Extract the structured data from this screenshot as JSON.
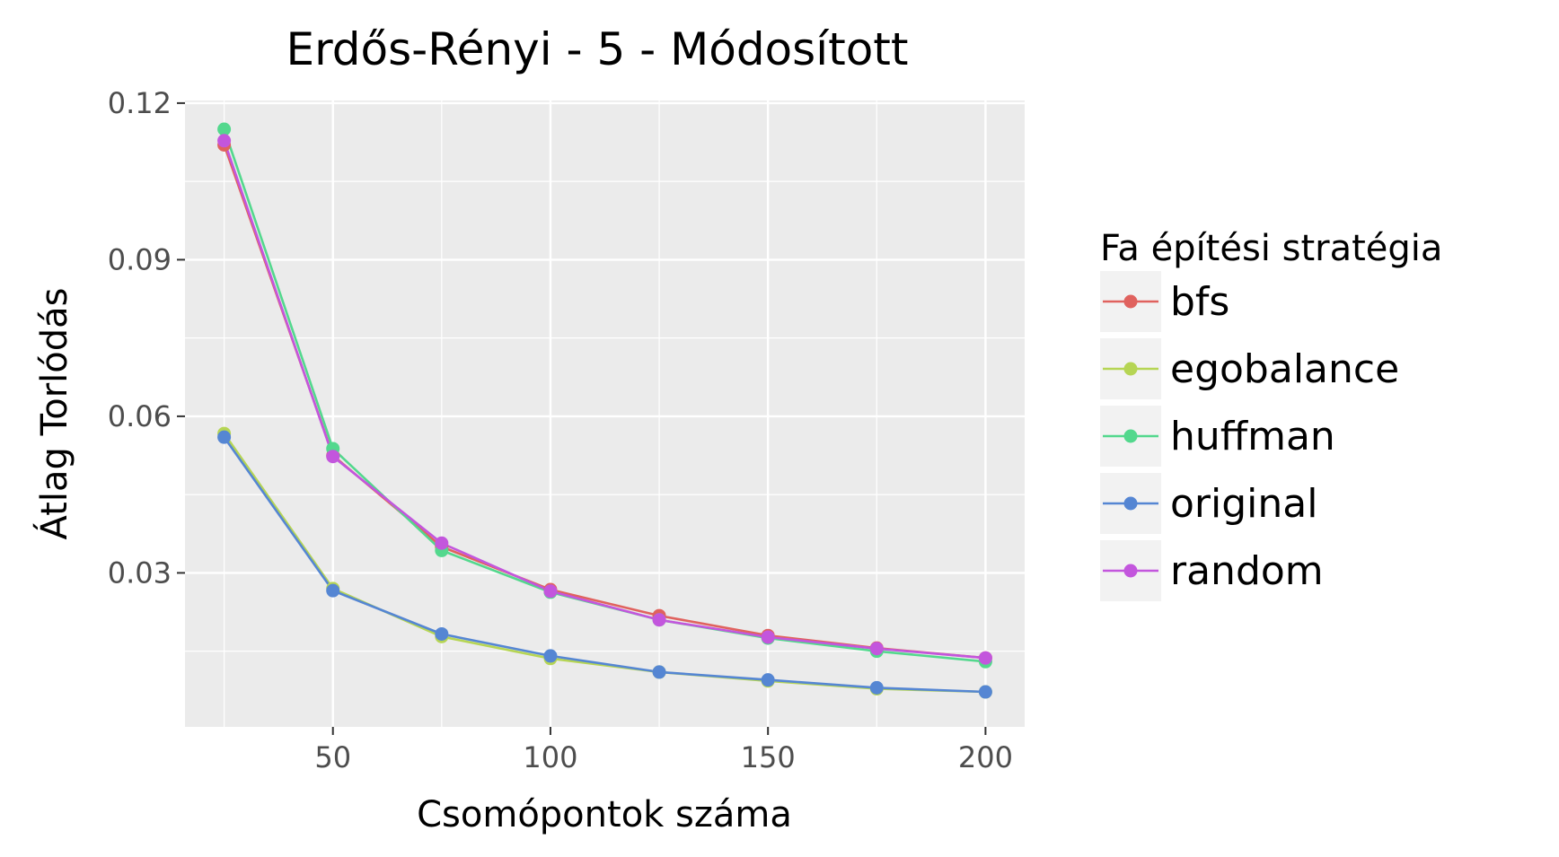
{
  "chart_data": {
    "type": "line",
    "title": "Erdős-Rényi - 5 - Módosított",
    "xlabel": "Csomópontok száma",
    "ylabel": "Átlag Torlódás",
    "xlim": [
      16,
      209
    ],
    "ylim": [
      0.0005,
      0.1205
    ],
    "x_ticks": [
      50,
      100,
      150,
      200
    ],
    "x_tick_labels": [
      "50",
      "100",
      "150",
      "200"
    ],
    "y_ticks": [
      0.03,
      0.06,
      0.09,
      0.12
    ],
    "y_tick_labels": [
      "0.03",
      "0.06",
      "0.09",
      "0.12"
    ],
    "grid": true,
    "panel_background": "#ebebeb",
    "legend_position": "right",
    "legend_title": "Fa építési stratégia",
    "x": [
      25,
      50,
      75,
      100,
      125,
      150,
      175,
      200
    ],
    "series": [
      {
        "name": "bfs",
        "color": "#e0625e",
        "values": [
          0.112,
          0.0525,
          0.035,
          0.0268,
          0.0218,
          0.018,
          0.0156,
          0.0137
        ]
      },
      {
        "name": "egobalance",
        "color": "#b6d554",
        "values": [
          0.0567,
          0.027,
          0.0178,
          0.0136,
          0.011,
          0.0093,
          0.0078,
          0.0072
        ]
      },
      {
        "name": "huffman",
        "color": "#53d88d",
        "values": [
          0.115,
          0.0538,
          0.0343,
          0.0263,
          0.021,
          0.0175,
          0.015,
          0.013
        ]
      },
      {
        "name": "original",
        "color": "#5586d3",
        "values": [
          0.056,
          0.0266,
          0.0183,
          0.0141,
          0.011,
          0.0095,
          0.008,
          0.0072
        ]
      },
      {
        "name": "random",
        "color": "#c356dd",
        "values": [
          0.1128,
          0.0523,
          0.0357,
          0.0265,
          0.021,
          0.0177,
          0.0155,
          0.0137
        ]
      }
    ]
  }
}
